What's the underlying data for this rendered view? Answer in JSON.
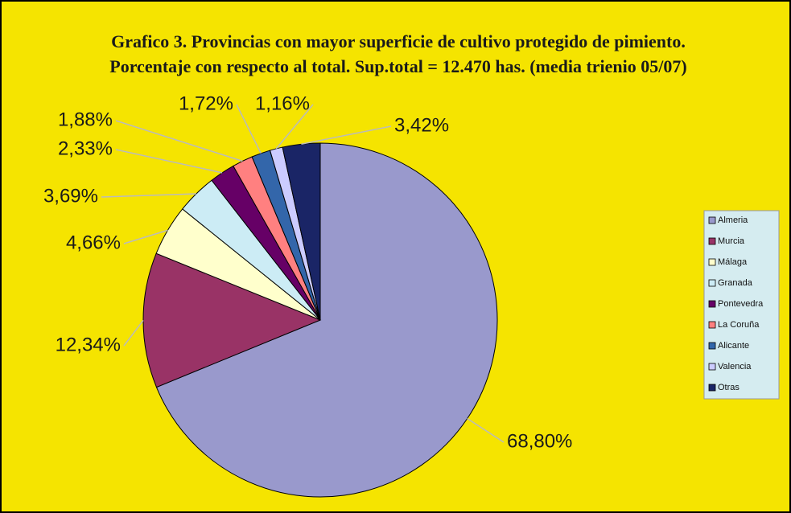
{
  "chart_data": {
    "type": "pie",
    "title": "Grafico 3. Provincias con mayor superficie de cultivo protegido de pimiento. Porcentaje con respecto al total. Sup.total = 12.470 has. (media trienio 05/07)",
    "categories": [
      "Almeria",
      "Murcia",
      "Málaga",
      "Granada",
      "Pontevedra",
      "La Coruña",
      "Alicante",
      "Valencia",
      "Otras"
    ],
    "values": [
      68.8,
      12.34,
      4.66,
      3.69,
      2.33,
      1.88,
      1.72,
      1.16,
      3.42
    ],
    "value_labels": [
      "68,80%",
      "12,34%",
      "4,66%",
      "3,69%",
      "2,33%",
      "1,88%",
      "1,72%",
      "1,16%",
      "3,42%"
    ],
    "colors": [
      "#9999cc",
      "#993366",
      "#ffffcc",
      "#ccecf5",
      "#660066",
      "#ff8080",
      "#3366aa",
      "#ccccff",
      "#1a2566"
    ],
    "legend": "right"
  }
}
